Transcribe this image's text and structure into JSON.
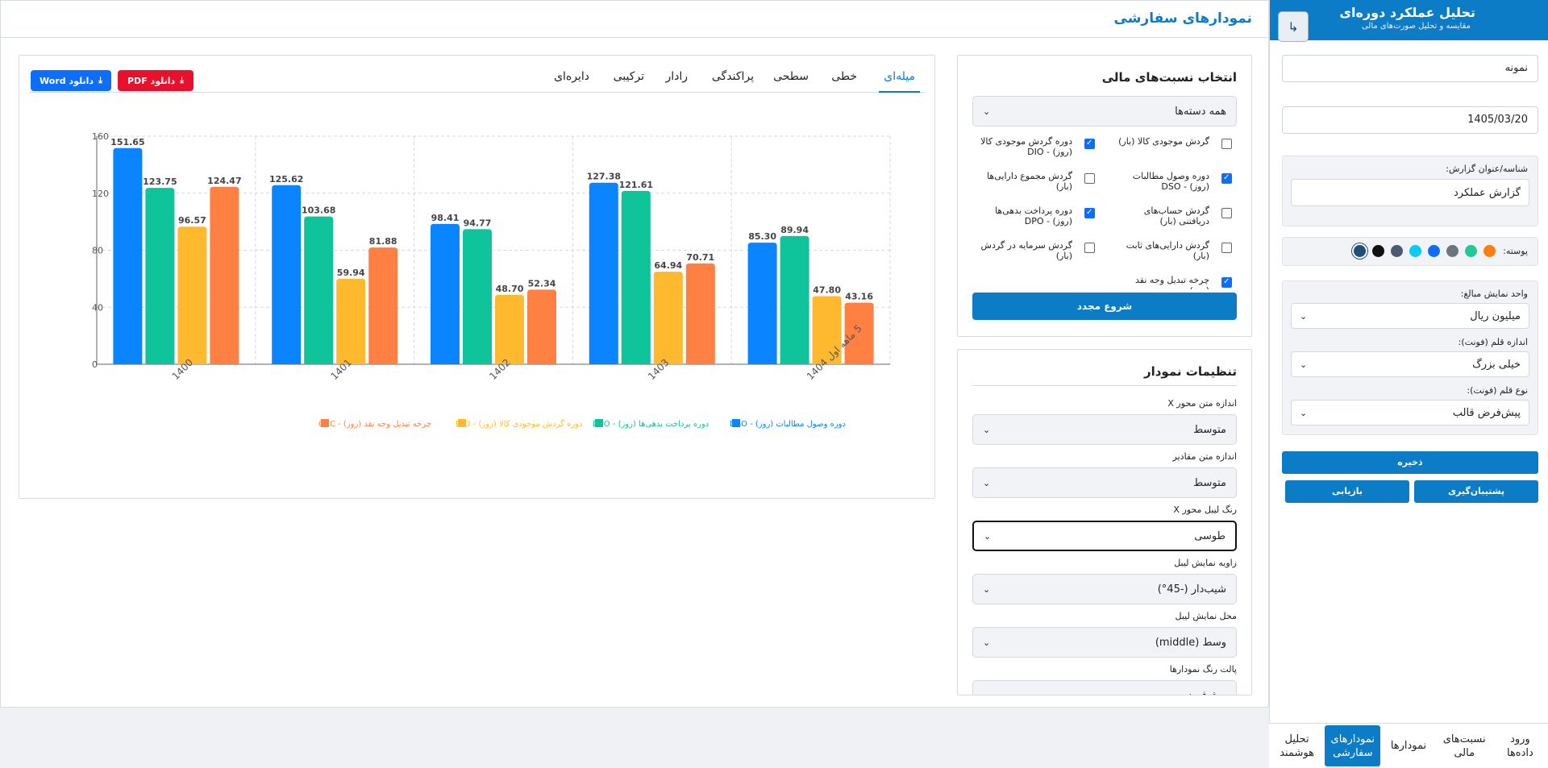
{
  "sidebar": {
    "title": "تحلیل عملکرد دوره‌ای",
    "subtitle": "مقایسه و تحلیل صورت‌های مالی",
    "company_value": "نمونه",
    "date_value": "1405/03/20",
    "report_label": "شناسه/عنوان گزارش:",
    "report_value": "گزارش عملکرد",
    "skin_label": "پوسته:",
    "skin_colors": [
      "#fd7e14",
      "#20c997",
      "#6c757d",
      "#0d6efd",
      "#0dcaf0",
      "#495a73",
      "#111111",
      "#1f4e79"
    ],
    "unit_label": "واحد نمایش مبالغ:",
    "unit_value": "میلیون ریال",
    "font_size_label": "اندازه قلم (فونت):",
    "font_size_value": "خیلی بزرگ",
    "font_type_label": "نوع قلم (فونت):",
    "font_type_value": "پیش‌فرض قالب",
    "save_label": "ذخیره",
    "backup_label": "پشتیبان‌گیری",
    "restore_label": "بازیابی"
  },
  "bottom_nav": [
    {
      "label": "ورود داده‌ها",
      "active": false
    },
    {
      "label": "نسبت‌های مالی",
      "active": false
    },
    {
      "label": "نمودارها",
      "active": false
    },
    {
      "label": "نمودارهای سفارشی",
      "active": true
    },
    {
      "label": "تحلیل هوشمند",
      "active": false
    }
  ],
  "main": {
    "page_title": "نمودارهای سفارشی"
  },
  "ratios_panel": {
    "title": "انتخاب نسبت‌های مالی",
    "category_value": "همه دسته‌ها",
    "items": [
      {
        "label": "گردش موجودی کالا (بار)",
        "checked": false
      },
      {
        "label": "دوره گردش موجودی کالا (روز) - DIO",
        "checked": true
      },
      {
        "label": "دوره وصول مطالبات (روز) - DSO",
        "checked": true
      },
      {
        "label": "گردش مجموع دارایی‌ها (بار)",
        "checked": false
      },
      {
        "label": "گردش حساب‌های دریافتنی (بار)",
        "checked": false
      },
      {
        "label": "دوره پرداخت بدهی‌ها (روز) - DPO",
        "checked": true
      },
      {
        "label": "گردش دارایی‌های ثابت (بار)",
        "checked": false
      },
      {
        "label": "گردش سرمایه در گردش (بار)",
        "checked": false
      },
      {
        "label": "چرخه تبدیل وجه نقد (روز)",
        "checked": true
      }
    ],
    "reset_label": "شروع مجدد"
  },
  "settings_panel": {
    "title": "تنظیمات نمودار",
    "fields": [
      {
        "label": "اندازه متن محور X",
        "value": "متوسط"
      },
      {
        "label": "اندازه متن مقادیر",
        "value": "متوسط"
      },
      {
        "label": "رنگ لیبل محور X",
        "value": "طوسی"
      },
      {
        "label": "زاویه نمایش لیبل",
        "value": "شیب‌دار (-45°)"
      },
      {
        "label": "محل نمایش لیبل",
        "value": "وسط (middle)"
      },
      {
        "label": "پالت رنگ نمودارها",
        "value": "پیش‌فرض"
      }
    ]
  },
  "chart_card": {
    "tabs": [
      "میله‌ای",
      "خطی",
      "سطحی",
      "پراکندگی",
      "رادار",
      "ترکیبی",
      "دایره‌ای"
    ],
    "active_tab": "میله‌ای",
    "download_pdf": "دانلود PDF",
    "download_word": "دانلود Word"
  },
  "chart_data": {
    "type": "bar",
    "categories": [
      "1400",
      "1401",
      "1402",
      "1403",
      "5 ماهه اول 1404"
    ],
    "ylim": [
      0,
      160
    ],
    "yticks": [
      0,
      40,
      80,
      120,
      160
    ],
    "grid": true,
    "legend": "bottom",
    "series": [
      {
        "name": "دوره وصول مطالبات (روز) - DSO",
        "color": "#0a84ff",
        "values": [
          151.65,
          125.62,
          98.41,
          127.38,
          85.3
        ]
      },
      {
        "name": "دوره پرداخت بدهی‌ها (روز) - DPO",
        "color": "#0fc39a",
        "values": [
          123.75,
          103.68,
          94.77,
          121.61,
          89.94
        ]
      },
      {
        "name": "دوره گردش موجودی کالا (روز) - DIO",
        "color": "#ffb92e",
        "values": [
          96.57,
          59.94,
          48.7,
          64.94,
          47.8
        ]
      },
      {
        "name": "چرخه تبدیل وجه نقد (روز) - CCC",
        "color": "#ff8042",
        "values": [
          124.47,
          81.88,
          52.34,
          70.71,
          43.16
        ]
      }
    ]
  }
}
